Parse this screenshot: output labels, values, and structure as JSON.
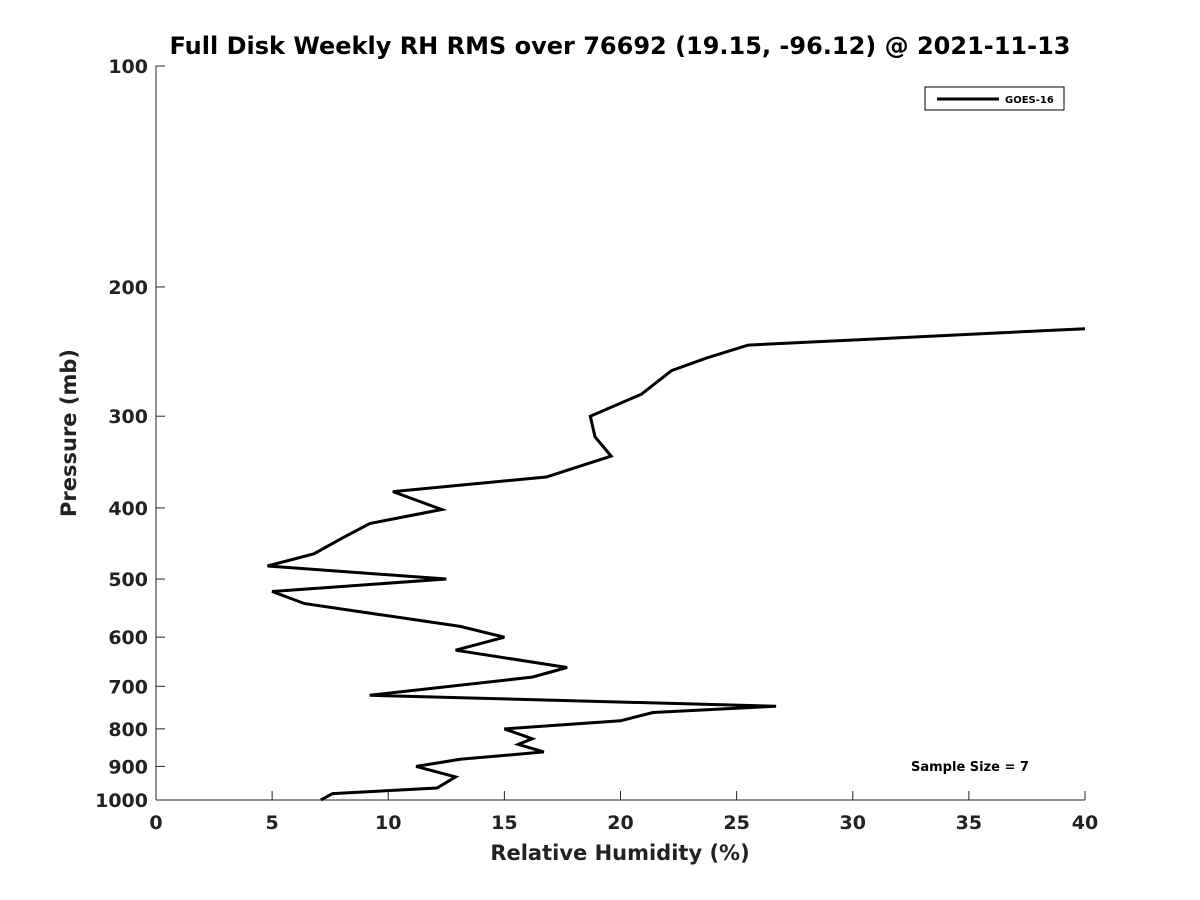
{
  "chart_data": {
    "type": "line",
    "title": "Full Disk Weekly RH RMS over 76692 (19.15, -96.12) @ 2021-11-13",
    "xlabel": "Relative Humidity (%)",
    "ylabel": "Pressure (mb)",
    "xlim": [
      0,
      40
    ],
    "ylim": [
      100,
      1000
    ],
    "y_scale": "log",
    "y_reversed": true,
    "x_ticks": [
      0,
      5,
      10,
      15,
      20,
      25,
      30,
      35,
      40
    ],
    "y_ticks": [
      100,
      200,
      300,
      400,
      500,
      600,
      700,
      800,
      900,
      1000
    ],
    "grid": false,
    "legend_position": "top-right",
    "series": [
      {
        "name": "GOES-16",
        "color": "#000000",
        "points": [
          {
            "rh": 7.1,
            "p": 1000
          },
          {
            "rh": 7.6,
            "p": 980
          },
          {
            "rh": 12.1,
            "p": 963
          },
          {
            "rh": 12.9,
            "p": 930
          },
          {
            "rh": 11.2,
            "p": 900
          },
          {
            "rh": 13.1,
            "p": 880
          },
          {
            "rh": 16.7,
            "p": 860
          },
          {
            "rh": 15.6,
            "p": 840
          },
          {
            "rh": 16.2,
            "p": 825
          },
          {
            "rh": 15.0,
            "p": 800
          },
          {
            "rh": 20.0,
            "p": 780
          },
          {
            "rh": 21.4,
            "p": 760
          },
          {
            "rh": 26.7,
            "p": 745
          },
          {
            "rh": 9.2,
            "p": 720
          },
          {
            "rh": 16.2,
            "p": 680
          },
          {
            "rh": 17.7,
            "p": 660
          },
          {
            "rh": 12.9,
            "p": 625
          },
          {
            "rh": 15.0,
            "p": 600
          },
          {
            "rh": 13.1,
            "p": 580
          },
          {
            "rh": 6.4,
            "p": 540
          },
          {
            "rh": 5.0,
            "p": 520
          },
          {
            "rh": 12.5,
            "p": 500
          },
          {
            "rh": 4.8,
            "p": 480
          },
          {
            "rh": 6.8,
            "p": 462
          },
          {
            "rh": 8.0,
            "p": 440
          },
          {
            "rh": 9.2,
            "p": 420
          },
          {
            "rh": 12.3,
            "p": 402
          },
          {
            "rh": 10.2,
            "p": 380
          },
          {
            "rh": 16.8,
            "p": 363
          },
          {
            "rh": 19.6,
            "p": 340
          },
          {
            "rh": 18.9,
            "p": 320
          },
          {
            "rh": 18.7,
            "p": 300
          },
          {
            "rh": 20.9,
            "p": 280
          },
          {
            "rh": 22.2,
            "p": 260
          },
          {
            "rh": 23.7,
            "p": 250
          },
          {
            "rh": 25.5,
            "p": 240
          },
          {
            "rh": 40.0,
            "p": 228
          }
        ]
      }
    ],
    "annotation": "Sample Size = 7"
  }
}
